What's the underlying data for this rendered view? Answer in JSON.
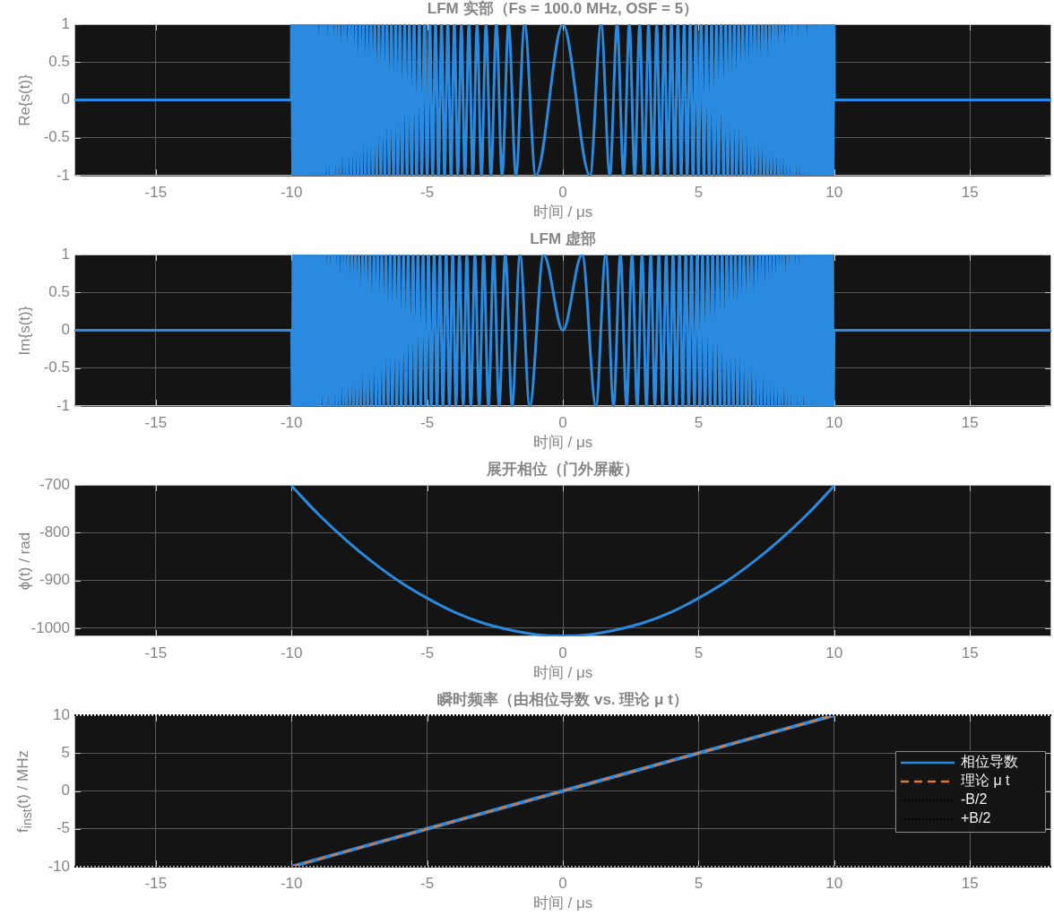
{
  "chart_data": [
    {
      "type": "line",
      "title": "LFM 实部（Fs = 100.0 MHz, OSF = 5）",
      "xlabel": "时间 / μs",
      "ylabel": "Re{s(t)}",
      "color": "#2a8ae0",
      "x": [
        -18,
        -10.01,
        -10,
        -9.95,
        -9.9,
        -9.85,
        -9.8,
        -9.75,
        -9.7,
        -9.64,
        -9.59,
        -9.54,
        -9.49,
        -9.43,
        -9.38,
        -9.33,
        -9.27,
        -9.22,
        -9.17,
        -9.11,
        -9.06,
        -9,
        -8.94,
        -8.89,
        -8.83,
        -8.78,
        -8.72,
        -8.66,
        -8.6,
        -8.54,
        -8.49,
        -8.43,
        -8.37,
        -8.31,
        -8.25,
        -8.19,
        -8.12,
        -8.06,
        -8,
        -7.94,
        -7.87,
        -7.81,
        -7.75,
        -7.68,
        -7.62,
        -7.55,
        -7.48,
        -7.42,
        -7.35,
        -7.28,
        -7.21,
        -7.14,
        -7.07,
        -7,
        -6.93,
        -6.86,
        -6.78,
        -6.71,
        -6.63,
        -6.56,
        -6.48,
        -6.4,
        -6.32,
        -6.24,
        -6.16,
        -6.08,
        -6,
        -5.92,
        -5.83,
        -5.74,
        -5.66,
        -5.57,
        -5.48,
        -5.39,
        -5.29,
        -5.2,
        -5.1,
        -5,
        -4.9,
        -4.8,
        -4.69,
        -4.58,
        -4.47,
        -4.36,
        -4.24,
        -4.12,
        -4,
        -3.87,
        -3.74,
        -3.61,
        -3.46,
        -3.32,
        -3.16,
        -3,
        -2.83,
        -2.65,
        -2.45,
        -2.24,
        -2,
        -1.73,
        -1.41,
        -1,
        0,
        1,
        1.41,
        1.73,
        2,
        2.24,
        2.45,
        2.65,
        2.83,
        3,
        3.16,
        3.32,
        3.46,
        3.61,
        3.74,
        3.87,
        4,
        4.12,
        4.24,
        4.36,
        4.47,
        4.58,
        4.69,
        4.8,
        4.9,
        5,
        5.1,
        5.2,
        5.29,
        5.39,
        5.48,
        5.57,
        5.66,
        5.74,
        5.83,
        5.92,
        6,
        6.08,
        6.16,
        6.24,
        6.32,
        6.4,
        6.48,
        6.56,
        6.63,
        6.71,
        6.78,
        6.86,
        6.93,
        7,
        7.07,
        7.14,
        7.21,
        7.28,
        7.35,
        7.42,
        7.48,
        7.55,
        7.62,
        7.68,
        7.75,
        7.81,
        7.87,
        7.94,
        8,
        8.06,
        8.12,
        8.19,
        8.25,
        8.31,
        8.37,
        8.43,
        8.49,
        8.54,
        8.6,
        8.66,
        8.72,
        8.78,
        8.83,
        8.89,
        8.94,
        9,
        9.06,
        9.11,
        9.17,
        9.22,
        9.27,
        9.33,
        9.38,
        9.43,
        9.49,
        9.54,
        9.59,
        9.64,
        9.7,
        9.75,
        9.8,
        9.85,
        9.9,
        9.95,
        10,
        10.01,
        18
      ],
      "values": [
        0,
        0,
        1,
        -1,
        1,
        -1,
        1,
        -1,
        1,
        -1,
        1,
        -1,
        1,
        -1,
        1,
        -1,
        1,
        -1,
        1,
        -1,
        1,
        -1,
        1,
        -1,
        1,
        -1,
        1,
        -1,
        1,
        -1,
        1,
        -1,
        1,
        -1,
        1,
        -1,
        1,
        -1,
        1,
        -1,
        1,
        -1,
        1,
        -1,
        1,
        -1,
        1,
        -1,
        1,
        -1,
        1,
        -1,
        1,
        -1,
        1,
        -1,
        1,
        -1,
        1,
        -1,
        1,
        -1,
        1,
        -1,
        1,
        -1,
        1,
        -1,
        1,
        -1,
        1,
        -1,
        1,
        -1,
        1,
        -1,
        1,
        -1,
        1,
        -1,
        1,
        -1,
        1,
        -1,
        1,
        -1,
        1,
        -1,
        1,
        -1,
        1,
        -1,
        1,
        -1,
        1,
        -1,
        1,
        -1,
        1,
        -1,
        1,
        -1,
        1,
        -1,
        1,
        -1,
        1,
        -1,
        1,
        -1,
        1,
        -1,
        1,
        -1,
        1,
        -1,
        1,
        -1,
        1,
        -1,
        1,
        -1,
        1,
        -1,
        1,
        -1,
        1,
        -1,
        1,
        -1,
        1,
        -1,
        1,
        -1,
        1,
        -1,
        1,
        -1,
        1,
        -1,
        1,
        -1,
        1,
        -1,
        1,
        -1,
        1,
        -1,
        1,
        -1,
        1,
        -1,
        1,
        -1,
        1,
        -1,
        1,
        -1,
        1,
        -1,
        1,
        -1,
        1,
        -1,
        1,
        -1,
        1,
        -1,
        1,
        -1,
        1,
        -1,
        1,
        -1,
        1,
        -1,
        1,
        -1,
        1,
        -1,
        1,
        -1,
        1,
        -1,
        1,
        -1,
        1,
        -1,
        1,
        -1,
        1,
        -1,
        1,
        -1,
        1,
        -1,
        1,
        -1,
        1,
        -1,
        1,
        -1,
        1,
        0,
        0
      ],
      "xlim": [
        -18,
        18
      ],
      "xticks": [
        -15,
        -10,
        -5,
        0,
        5,
        10,
        15
      ],
      "ylim": [
        -1,
        1
      ],
      "yticks": [
        -1,
        -0.5,
        0,
        0.5,
        1
      ],
      "grid": true
    },
    {
      "type": "line",
      "title": "LFM 虚部",
      "xlabel": "时间 / μs",
      "ylabel": "Im{s(t)}",
      "color": "#2a8ae0",
      "x": [
        -18,
        -10,
        -9.97,
        -9.92,
        -9.87,
        -9.82,
        -9.77,
        -9.72,
        -9.67,
        -9.62,
        -9.57,
        -9.51,
        -9.46,
        -9.41,
        -9.35,
        -9.3,
        -9.25,
        -9.19,
        -9.14,
        -9.08,
        -9.03,
        -8.97,
        -8.92,
        -8.86,
        -8.8,
        -8.75,
        -8.69,
        -8.63,
        -8.57,
        -8.51,
        -8.46,
        -8.4,
        -8.34,
        -8.28,
        -8.22,
        -8.15,
        -8.09,
        -8.03,
        -7.97,
        -7.91,
        -7.84,
        -7.78,
        -7.71,
        -7.65,
        -7.58,
        -7.52,
        -7.45,
        -7.38,
        -7.31,
        -7.25,
        -7.18,
        -7.11,
        -7.04,
        -6.96,
        -6.89,
        -6.82,
        -6.75,
        -6.67,
        -6.6,
        -6.52,
        -6.44,
        -6.36,
        -6.28,
        -6.2,
        -6.12,
        -6.04,
        -5.96,
        -5.87,
        -5.79,
        -5.7,
        -5.61,
        -5.52,
        -5.43,
        -5.34,
        -5.24,
        -5.15,
        -5.05,
        -4.95,
        -4.85,
        -4.74,
        -4.64,
        -4.53,
        -4.42,
        -4.3,
        -4.18,
        -4.06,
        -3.94,
        -3.81,
        -3.67,
        -3.54,
        -3.39,
        -3.24,
        -3.08,
        -2.92,
        -2.74,
        -2.55,
        -2.35,
        -2.12,
        -1.87,
        -1.58,
        -1.22,
        -0.71,
        0,
        0.71,
        1.22,
        1.58,
        1.87,
        2.12,
        2.35,
        2.55,
        2.74,
        2.92,
        3.08,
        3.24,
        3.39,
        3.54,
        3.67,
        3.81,
        3.94,
        4.06,
        4.18,
        4.3,
        4.42,
        4.53,
        4.64,
        4.74,
        4.85,
        4.95,
        5.05,
        5.15,
        5.24,
        5.34,
        5.43,
        5.52,
        5.61,
        5.7,
        5.79,
        5.87,
        5.96,
        6.04,
        6.12,
        6.2,
        6.28,
        6.36,
        6.44,
        6.52,
        6.6,
        6.67,
        6.75,
        6.82,
        6.89,
        6.96,
        7.04,
        7.11,
        7.18,
        7.25,
        7.31,
        7.38,
        7.45,
        7.52,
        7.58,
        7.65,
        7.71,
        7.78,
        7.84,
        7.91,
        7.97,
        8.03,
        8.09,
        8.15,
        8.22,
        8.28,
        8.34,
        8.4,
        8.46,
        8.51,
        8.57,
        8.63,
        8.69,
        8.75,
        8.8,
        8.86,
        8.92,
        8.97,
        9.03,
        9.08,
        9.14,
        9.19,
        9.25,
        9.3,
        9.35,
        9.41,
        9.46,
        9.51,
        9.57,
        9.62,
        9.67,
        9.72,
        9.77,
        9.82,
        9.87,
        9.92,
        9.97,
        10,
        18
      ],
      "values": [
        0,
        0,
        -1,
        1,
        -1,
        1,
        -1,
        1,
        -1,
        1,
        -1,
        1,
        -1,
        1,
        -1,
        1,
        -1,
        1,
        -1,
        1,
        -1,
        1,
        -1,
        1,
        -1,
        1,
        -1,
        1,
        -1,
        1,
        -1,
        1,
        -1,
        1,
        -1,
        1,
        -1,
        1,
        -1,
        1,
        -1,
        1,
        -1,
        1,
        -1,
        1,
        -1,
        1,
        -1,
        1,
        -1,
        1,
        -1,
        1,
        -1,
        1,
        -1,
        1,
        -1,
        1,
        -1,
        1,
        -1,
        1,
        -1,
        1,
        -1,
        1,
        -1,
        1,
        -1,
        1,
        -1,
        1,
        -1,
        1,
        -1,
        1,
        -1,
        1,
        -1,
        1,
        -1,
        1,
        -1,
        1,
        -1,
        1,
        -1,
        1,
        -1,
        1,
        -1,
        1,
        -1,
        1,
        -1,
        1,
        -1,
        1,
        -1,
        1,
        0,
        1,
        -1,
        1,
        -1,
        1,
        -1,
        1,
        -1,
        1,
        -1,
        1,
        -1,
        1,
        -1,
        1,
        -1,
        1,
        -1,
        1,
        -1,
        1,
        -1,
        1,
        -1,
        1,
        -1,
        1,
        -1,
        1,
        -1,
        1,
        -1,
        1,
        -1,
        1,
        -1,
        1,
        -1,
        1,
        -1,
        1,
        -1,
        1,
        -1,
        1,
        -1,
        1,
        -1,
        1,
        -1,
        1,
        -1,
        1,
        -1,
        1,
        -1,
        1,
        -1,
        1,
        -1,
        1,
        -1,
        1,
        -1,
        1,
        -1,
        1,
        -1,
        1,
        -1,
        1,
        -1,
        1,
        -1,
        1,
        -1,
        1,
        -1,
        1,
        -1,
        1,
        -1,
        1,
        -1,
        1,
        -1,
        1,
        -1,
        1,
        -1,
        1,
        -1,
        1,
        -1,
        1,
        -1,
        1,
        -1,
        1,
        -1,
        0,
        0
      ],
      "xlim": [
        -18,
        18
      ],
      "xticks": [
        -15,
        -10,
        -5,
        0,
        5,
        10,
        15
      ],
      "ylim": [
        -1,
        1
      ],
      "yticks": [
        -1,
        -0.5,
        0,
        0.5,
        1
      ],
      "grid": true
    },
    {
      "type": "line",
      "title": "展开相位（门外屏蔽）",
      "xlabel": "时间 / μs",
      "ylabel": "ϕ(t) / rad",
      "color": "#2a8ae0",
      "x": [
        -10,
        -9,
        -8,
        -7,
        -6,
        -5,
        -4,
        -3,
        -2,
        -1,
        0,
        1,
        2,
        3,
        4,
        5,
        6,
        7,
        8,
        9,
        10
      ],
      "values": [
        -702,
        -762,
        -815,
        -862,
        -903,
        -937,
        -966,
        -988,
        -1003,
        -1013,
        -1016,
        -1013,
        -1003,
        -988,
        -966,
        -937,
        -903,
        -862,
        -815,
        -762,
        -702
      ],
      "xlim": [
        -18,
        18
      ],
      "xticks": [
        -15,
        -10,
        -5,
        0,
        5,
        10,
        15
      ],
      "ylim": [
        -1017,
        -700
      ],
      "yticks": [
        -1000,
        -900,
        -800,
        -700
      ],
      "grid": true
    },
    {
      "type": "line",
      "title": "瞬时频率（由相位导数 vs. 理论 μ t）",
      "xlabel": "时间 / μs",
      "ylabel": "f$_{inst}$(t) / MHz",
      "series": [
        {
          "name": "相位导数",
          "color": "#2a8ae0",
          "x": [
            -10,
            -5,
            0,
            5,
            10
          ],
          "values": [
            -10,
            -5,
            0,
            5,
            10
          ]
        },
        {
          "name": "理论 μ t",
          "color": "#e8772e",
          "x": [
            -10,
            10
          ],
          "values": [
            -10,
            10
          ],
          "line_style": "dashed"
        }
      ],
      "ref_lines": [
        {
          "axis": "y",
          "value": -10,
          "label": "-B/2",
          "color": "#000000",
          "line_style": "dotted"
        },
        {
          "axis": "y",
          "value": 10,
          "label": "+B/2",
          "color": "#000000",
          "line_style": "dotted"
        }
      ],
      "legend": "right",
      "xlim": [
        -18,
        18
      ],
      "xticks": [
        -15,
        -10,
        -5,
        0,
        5,
        10,
        15
      ],
      "ylim": [
        -10,
        10
      ],
      "yticks": [
        -10,
        -5,
        0,
        5,
        10
      ],
      "grid": true
    }
  ]
}
